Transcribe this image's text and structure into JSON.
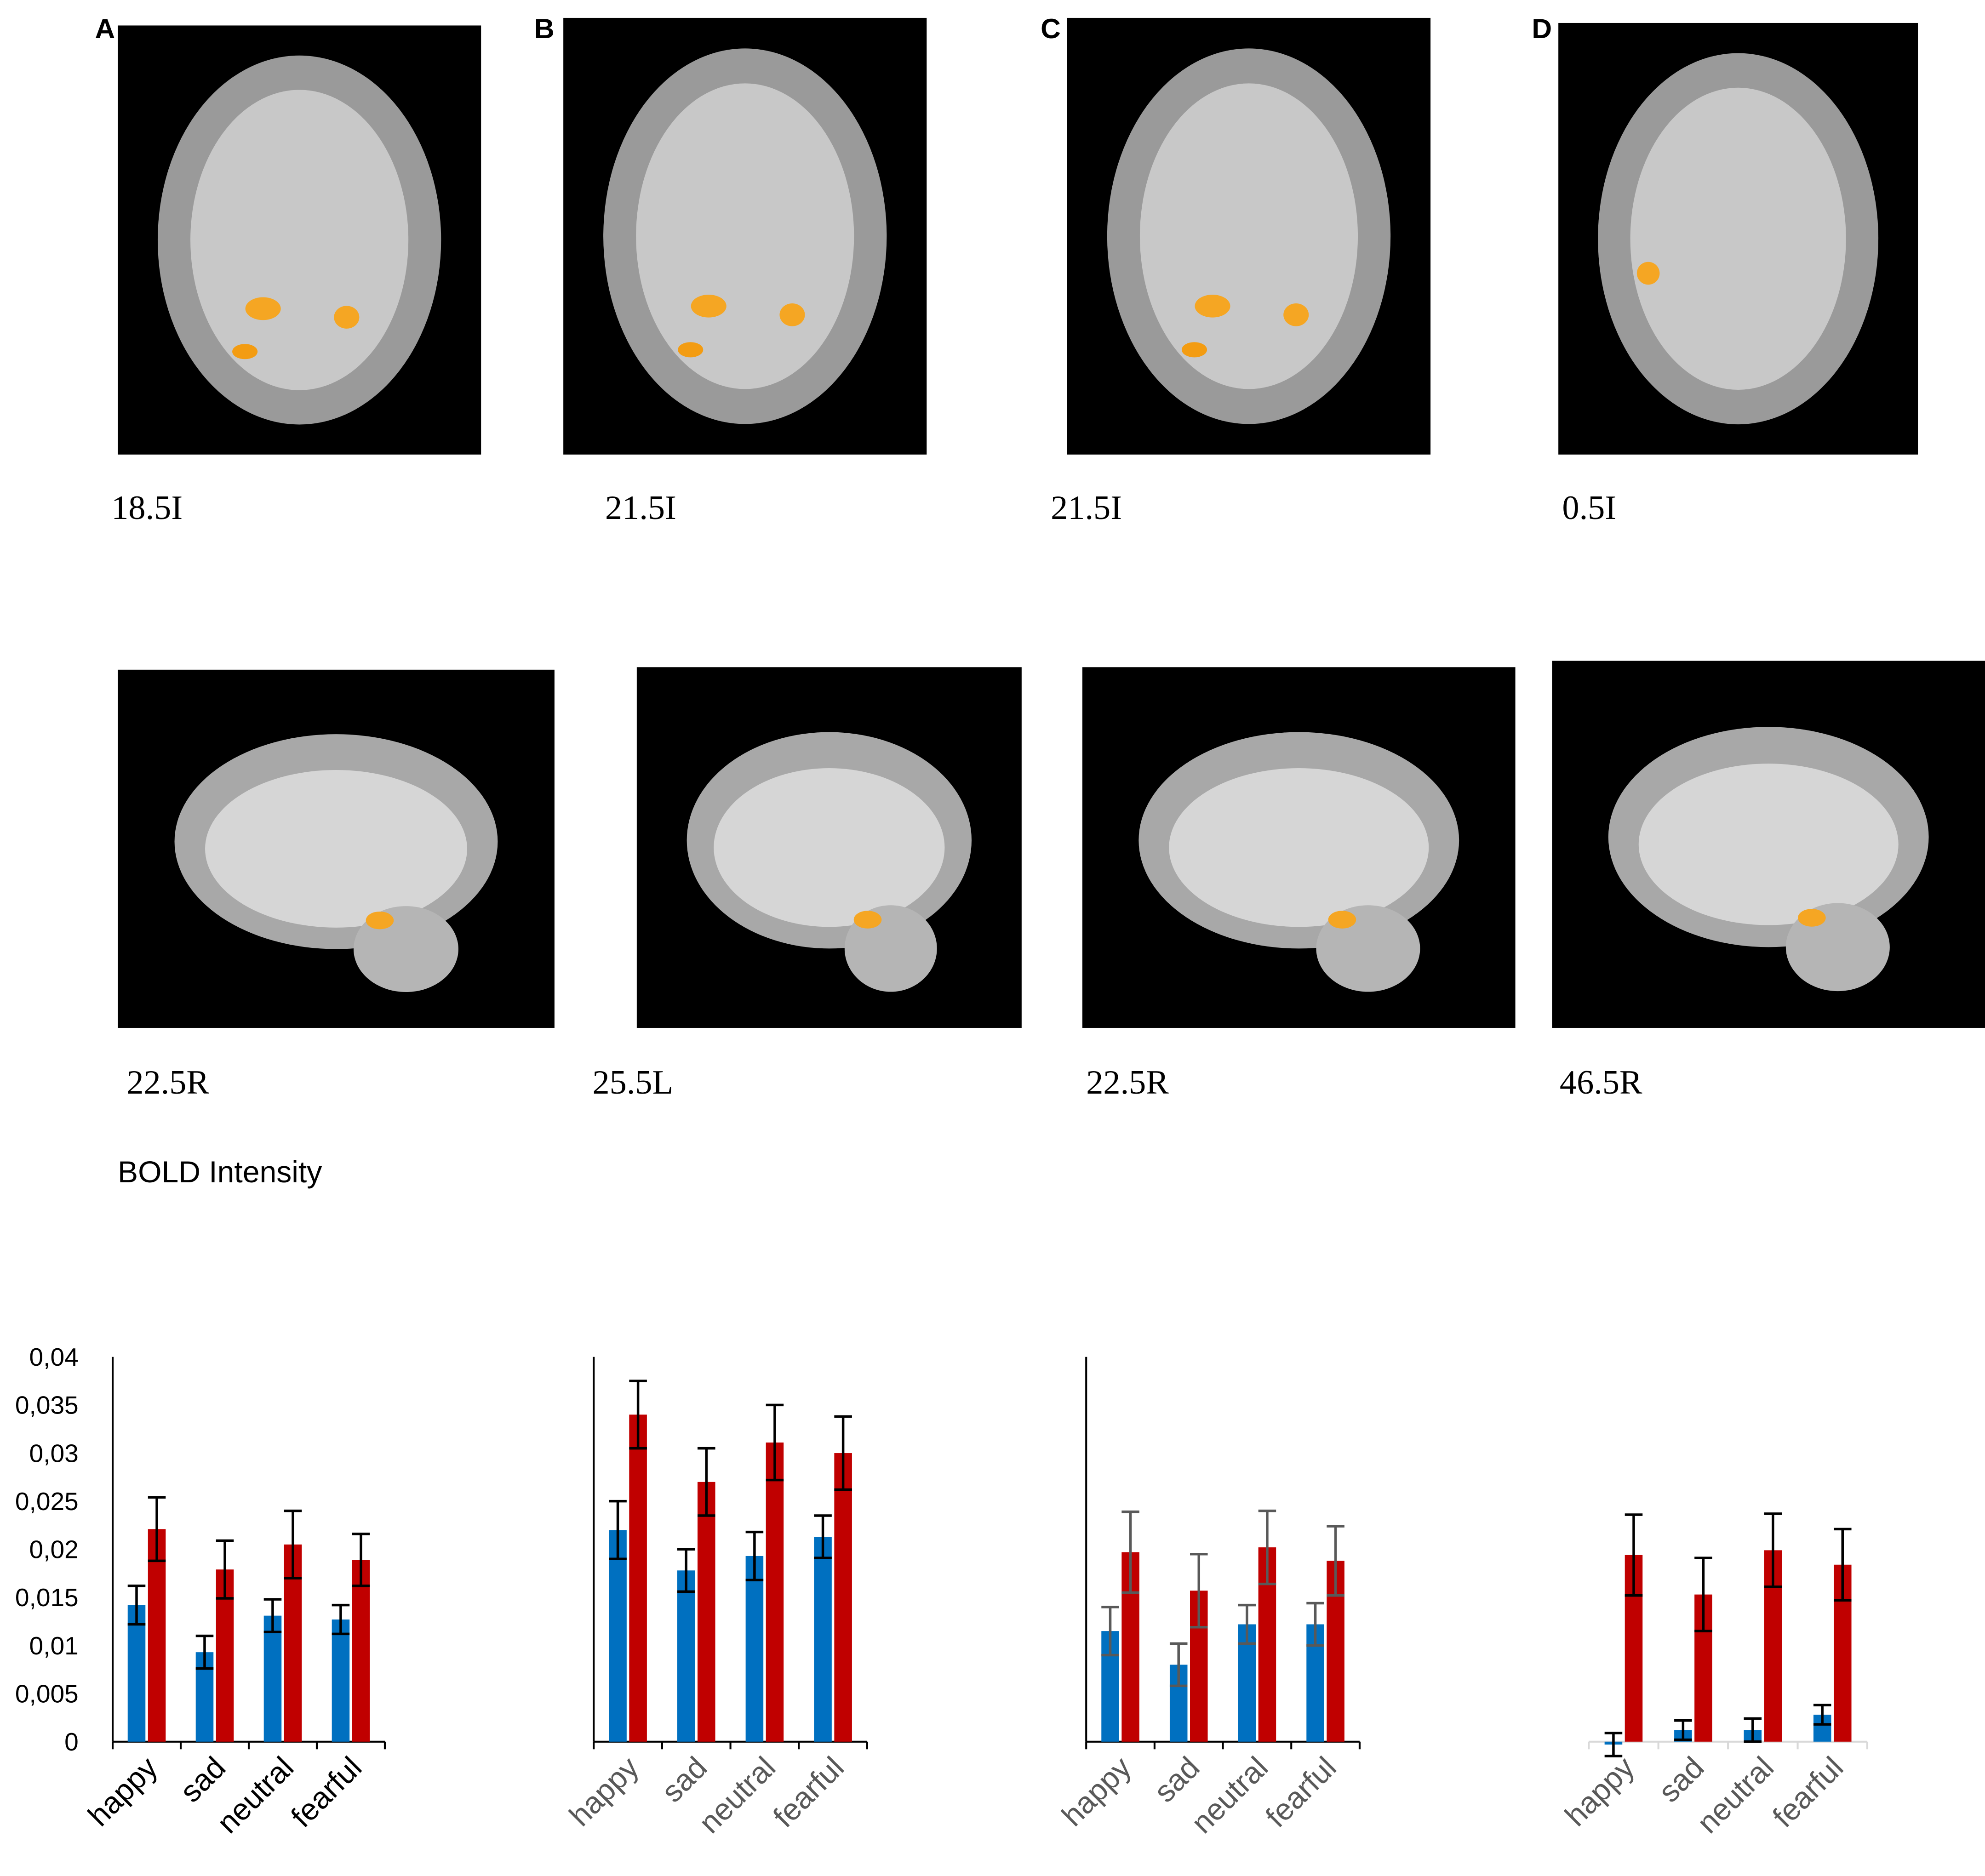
{
  "panels": [
    {
      "label": "A",
      "top_caption": "18.5I",
      "bottom_caption": "22.5R"
    },
    {
      "label": "B",
      "top_caption": "21.5I",
      "bottom_caption": "25.5L"
    },
    {
      "label": "C",
      "top_caption": "21.5I",
      "bottom_caption": "22.5R"
    },
    {
      "label": "D",
      "top_caption": "0.5I",
      "bottom_caption": "46.5R"
    }
  ],
  "y_axis_title": "BOLD Intensity",
  "chart_data": [
    {
      "type": "bar",
      "categories": [
        "happy",
        "sad",
        "neutral",
        "fearful"
      ],
      "ylim": [
        0,
        0.04
      ],
      "yticks": [
        0,
        {
          "value": 0.005,
          "label": "0,005"
        },
        {
          "value": 0.01,
          "label": "0,01"
        },
        {
          "value": 0.015,
          "label": "0,015"
        },
        {
          "value": 0.02,
          "label": "0,02"
        },
        {
          "value": 0.025,
          "label": "0,025"
        },
        {
          "value": 0.03,
          "label": "0,03"
        },
        {
          "value": 0.035,
          "label": "0,035"
        },
        {
          "value": 0.04,
          "label": "0,04"
        }
      ],
      "label_color": "#000000",
      "error_color": "#000000",
      "axis_color": "#000000",
      "show_y_axis": true,
      "series": [
        {
          "color": "#0070c0",
          "values": [
            0.0142,
            0.0093,
            0.0131,
            0.0127
          ],
          "errors": [
            0.002,
            0.0017,
            0.0017,
            0.0015
          ]
        },
        {
          "color": "#c00000",
          "values": [
            0.0221,
            0.0179,
            0.0205,
            0.0189
          ],
          "errors": [
            0.0033,
            0.003,
            0.0035,
            0.0027
          ]
        }
      ]
    },
    {
      "type": "bar",
      "categories": [
        "happy",
        "sad",
        "neutral",
        "fearful"
      ],
      "ylim": [
        0,
        0.04
      ],
      "label_color": "#595959",
      "error_color": "#000000",
      "axis_color": "#000000",
      "show_y_axis": true,
      "series": [
        {
          "color": "#0070c0",
          "values": [
            0.022,
            0.0178,
            0.0193,
            0.0213
          ],
          "errors": [
            0.003,
            0.0022,
            0.0025,
            0.0022
          ]
        },
        {
          "color": "#c00000",
          "values": [
            0.034,
            0.027,
            0.0311,
            0.03
          ],
          "errors": [
            0.0035,
            0.0035,
            0.0039,
            0.0038
          ]
        }
      ]
    },
    {
      "type": "bar",
      "categories": [
        "happy",
        "sad",
        "neutral",
        "fearful"
      ],
      "ylim": [
        0,
        0.04
      ],
      "label_color": "#595959",
      "error_color": "#595959",
      "axis_color": "#000000",
      "show_y_axis": true,
      "series": [
        {
          "color": "#0070c0",
          "values": [
            0.0115,
            0.008,
            0.0122,
            0.0122
          ],
          "errors": [
            0.0025,
            0.0022,
            0.002,
            0.0022
          ]
        },
        {
          "color": "#c00000",
          "values": [
            0.0197,
            0.0157,
            0.0202,
            0.0188
          ],
          "errors": [
            0.0042,
            0.0038,
            0.0038,
            0.0036
          ]
        }
      ]
    },
    {
      "type": "bar",
      "categories": [
        "happy",
        "sad",
        "neutral",
        "fearful"
      ],
      "ylim": [
        0,
        0.04
      ],
      "label_color": "#595959",
      "error_color": "#000000",
      "axis_color": "#d9d9d9",
      "show_y_axis": false,
      "series": [
        {
          "color": "#0070c0",
          "values": [
            -0.0003,
            0.0012,
            0.0012,
            0.0028
          ],
          "errors": [
            0.0012,
            0.001,
            0.0012,
            0.001
          ]
        },
        {
          "color": "#c00000",
          "values": [
            0.0194,
            0.0153,
            0.0199,
            0.0184
          ],
          "errors": [
            0.0042,
            0.0038,
            0.0038,
            0.0037
          ]
        }
      ]
    }
  ]
}
